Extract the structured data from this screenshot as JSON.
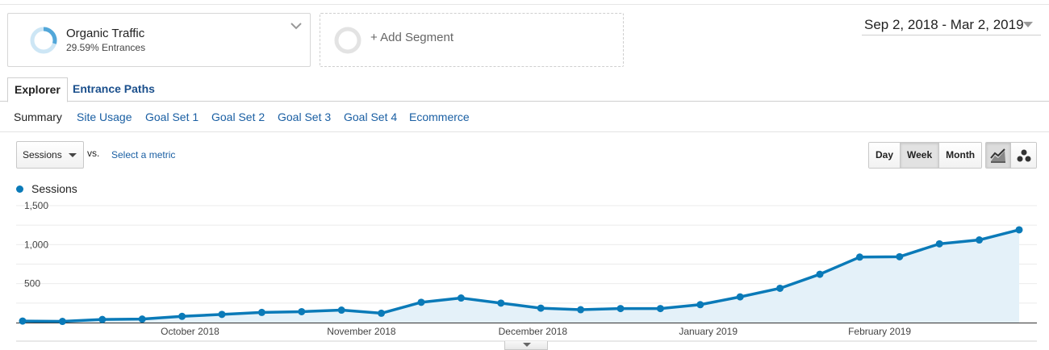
{
  "segments": {
    "active": {
      "name": "Organic Traffic",
      "sub": "29.59% Entrances",
      "ring_percent": 29.59,
      "color": "#52a7d9"
    },
    "add_label": "+ Add Segment"
  },
  "date_range": "Sep 2, 2018 - Mar 2, 2019",
  "tabs": [
    {
      "label": "Explorer"
    },
    {
      "label": "Entrance Paths"
    }
  ],
  "subnav": [
    "Summary",
    "Site Usage",
    "Goal Set 1",
    "Goal Set 2",
    "Goal Set 3",
    "Goal Set 4",
    "Ecommerce"
  ],
  "controls": {
    "metric": "Sessions",
    "vs": "vs.",
    "select_metric": "Select a metric",
    "periods": [
      "Day",
      "Week",
      "Month"
    ],
    "selected_period": "Week"
  },
  "chart_data": {
    "type": "area",
    "series": [
      {
        "name": "Sessions",
        "color": "#0a7ab8",
        "values": [
          20,
          15,
          40,
          45,
          80,
          105,
          130,
          140,
          160,
          120,
          260,
          315,
          250,
          185,
          165,
          180,
          180,
          230,
          330,
          440,
          620,
          840,
          845,
          1010,
          1060,
          1190
        ]
      }
    ],
    "x_points": 26,
    "x_tick_labels": [
      {
        "label": "October 2018",
        "index": 4.2
      },
      {
        "label": "November 2018",
        "index": 8.5
      },
      {
        "label": "December 2018",
        "index": 12.8
      },
      {
        "label": "January 2019",
        "index": 17.2
      },
      {
        "label": "February 2019",
        "index": 21.5
      }
    ],
    "y_ticks": [
      {
        "value": 1500,
        "label": "1,500"
      },
      {
        "value": 1000,
        "label": "1,000"
      },
      {
        "value": 500,
        "label": "500"
      }
    ],
    "ylim": [
      0,
      1500
    ],
    "grid": true
  }
}
